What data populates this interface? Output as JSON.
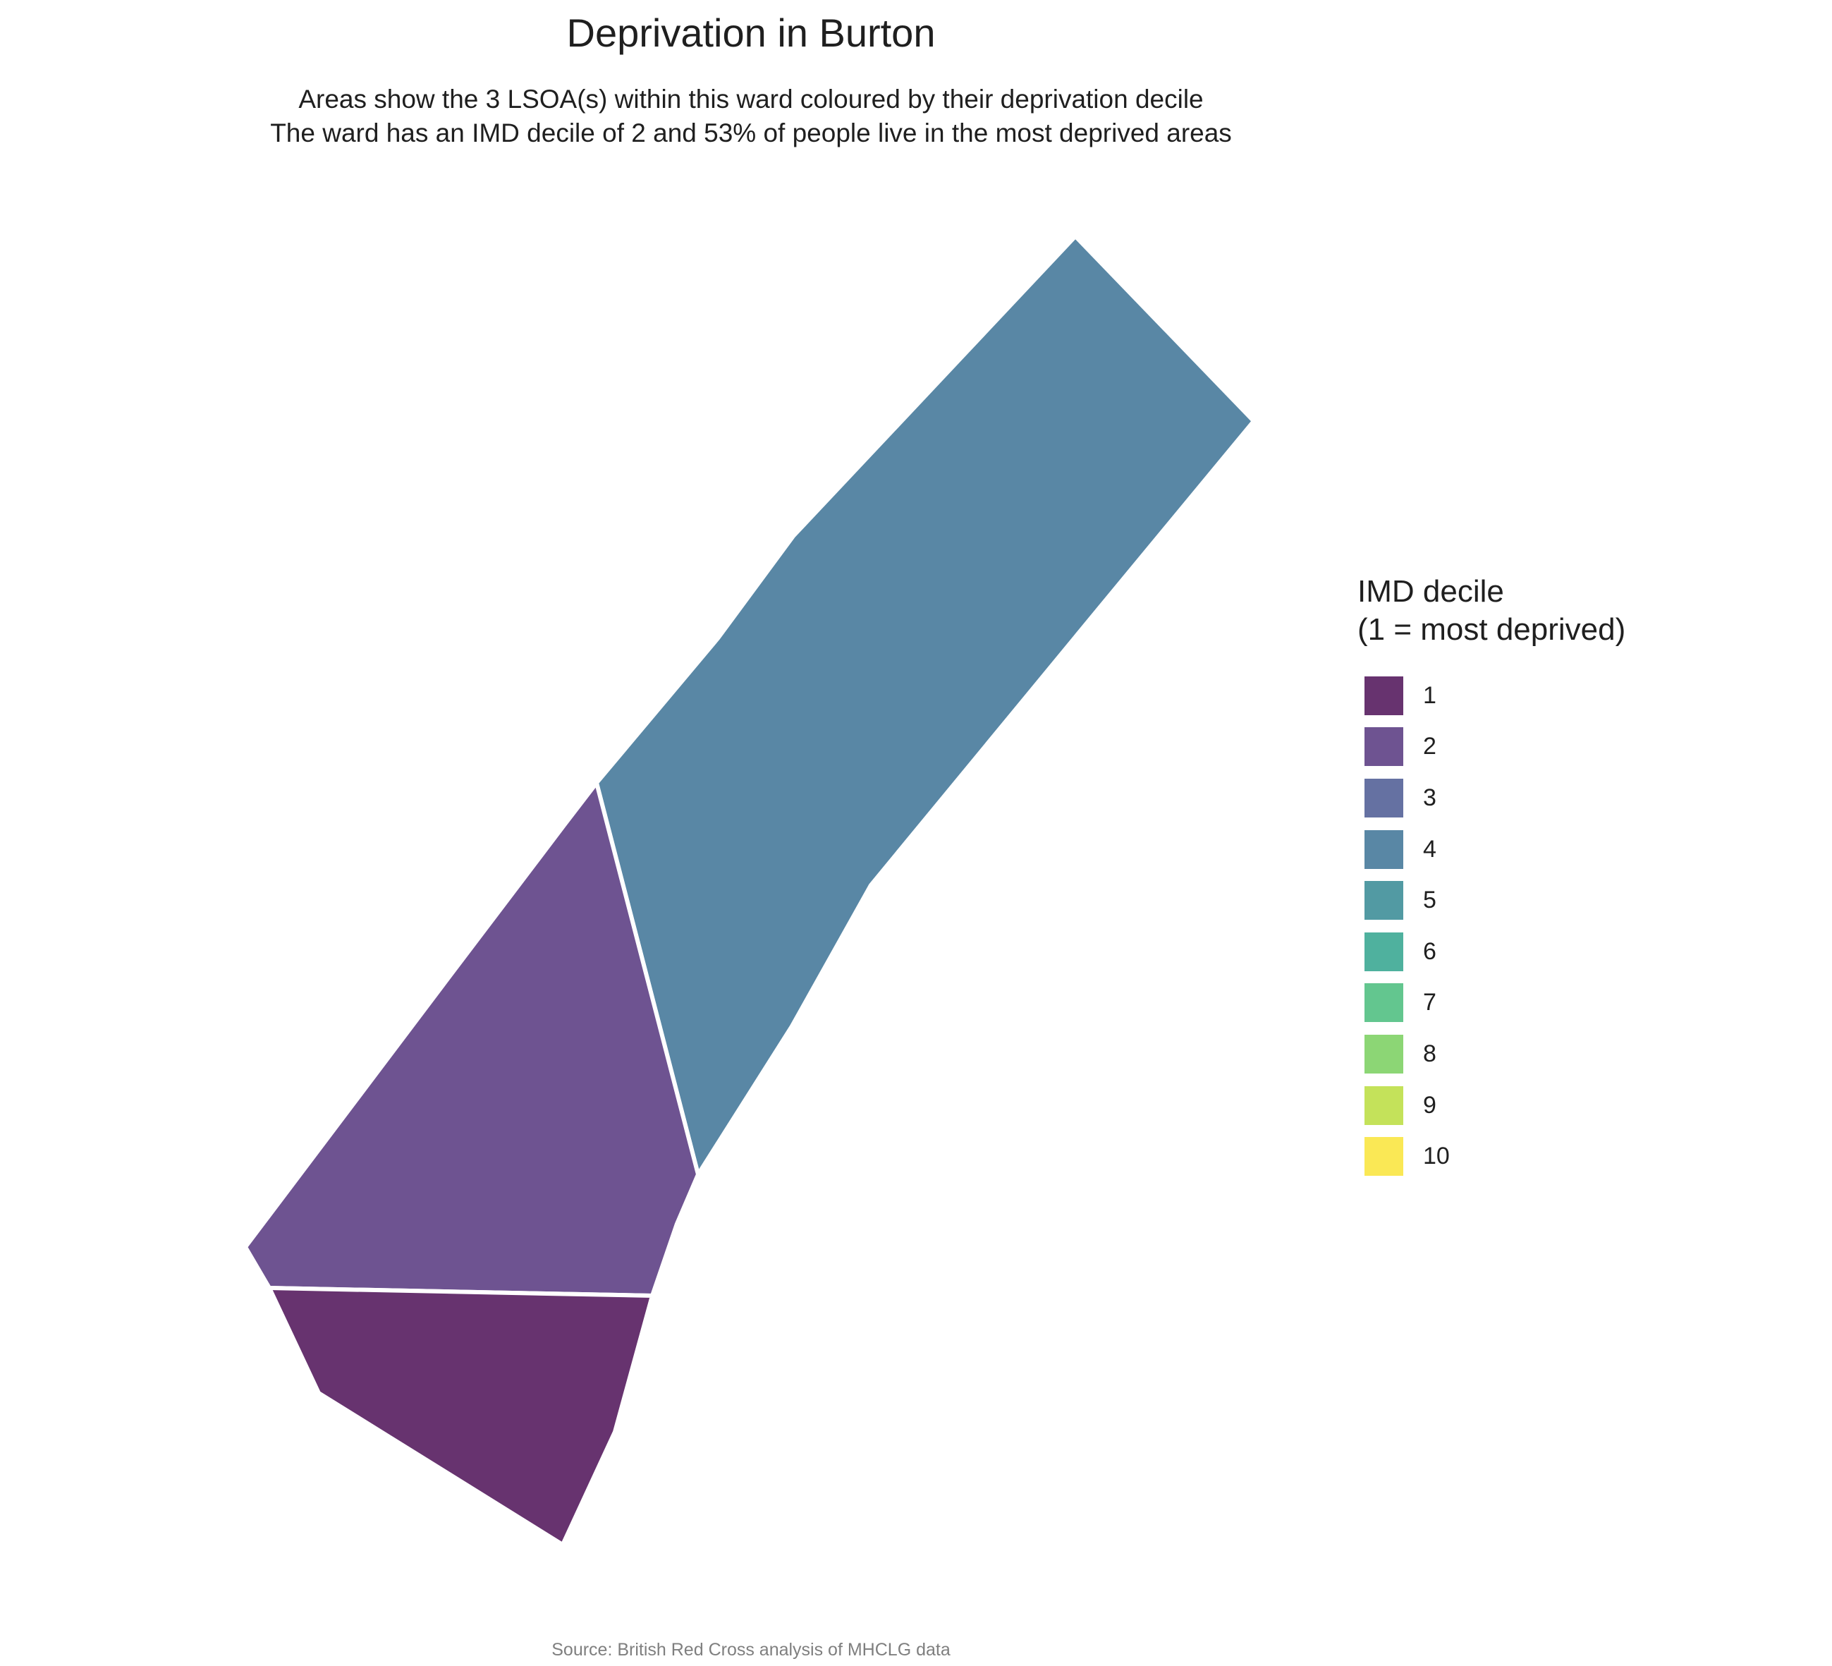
{
  "title": "Deprivation in Burton",
  "subtitle_line1": "Areas show the 3 LSOA(s) within this ward coloured by their deprivation decile",
  "subtitle_line2": "The ward has an IMD decile of 2 and 53% of people live in the most deprived areas",
  "caption": "Source: British Red Cross analysis of MHCLG data",
  "legend": {
    "title_line1": "IMD decile",
    "title_line2": "(1 = most deprived)",
    "items": [
      {
        "label": "1",
        "color": "#67336f"
      },
      {
        "label": "2",
        "color": "#6e5391"
      },
      {
        "label": "3",
        "color": "#6571a2"
      },
      {
        "label": "4",
        "color": "#5987a5"
      },
      {
        "label": "5",
        "color": "#529aa3"
      },
      {
        "label": "6",
        "color": "#4fb19e"
      },
      {
        "label": "7",
        "color": "#63c68f"
      },
      {
        "label": "8",
        "color": "#8cd675"
      },
      {
        "label": "9",
        "color": "#c4e25a"
      },
      {
        "label": "10",
        "color": "#fae855"
      }
    ]
  },
  "map": {
    "lsoa_count": 3,
    "areas": [
      {
        "decile": 4,
        "color": "#5987a5"
      },
      {
        "decile": 2,
        "color": "#6e5391"
      },
      {
        "decile": 1,
        "color": "#67336f"
      }
    ]
  }
}
